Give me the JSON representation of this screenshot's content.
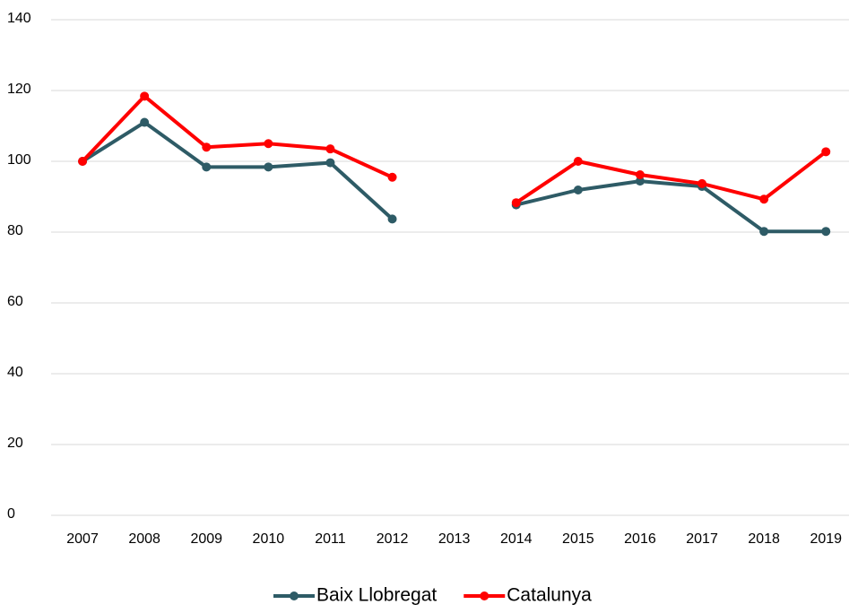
{
  "chart_data": {
    "type": "line",
    "categories": [
      "2007",
      "2008",
      "2009",
      "2010",
      "2011",
      "2012",
      "2013",
      "2014",
      "2015",
      "2016",
      "2017",
      "2018",
      "2019"
    ],
    "series": [
      {
        "name": "Baix Llobregat",
        "color": "#2e5b66",
        "values": [
          100,
          111,
          98.4,
          98.4,
          99.6,
          83.7,
          null,
          87.7,
          91.9,
          94.4,
          92.9,
          80.2,
          80.2
        ]
      },
      {
        "name": "Catalunya",
        "color": "#ff0000",
        "values": [
          100,
          118.4,
          104,
          105,
          103.5,
          95.5,
          null,
          88.3,
          100,
          96.2,
          93.7,
          89.3,
          102.7
        ]
      }
    ],
    "ylim": [
      0,
      140
    ],
    "yticks": [
      0,
      20,
      40,
      60,
      80,
      100,
      120,
      140
    ],
    "grid": true,
    "legend": "bottom"
  }
}
